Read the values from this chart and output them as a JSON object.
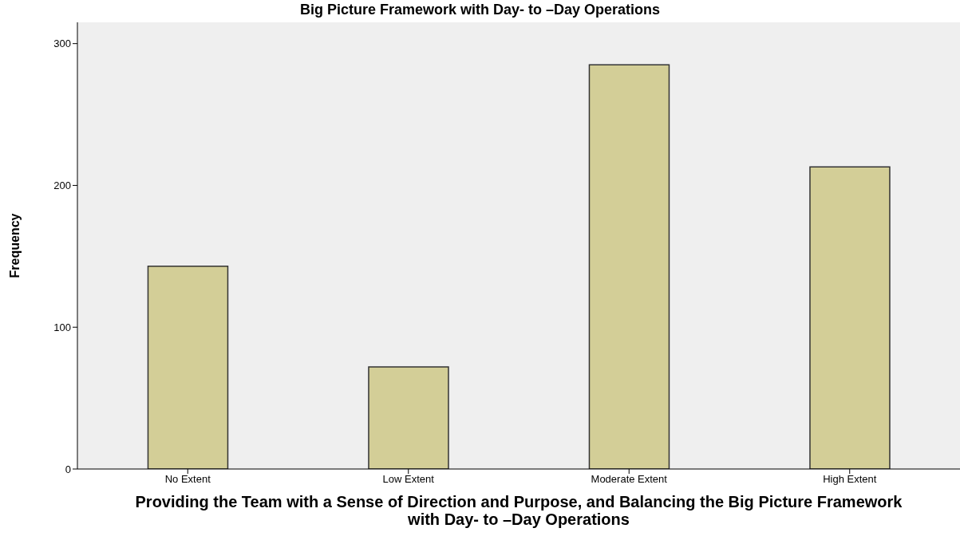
{
  "chart_data": {
    "type": "bar",
    "title": "Big Picture Framework with Day- to –Day Operations",
    "xlabel": "Providing the Team with a Sense of Direction and Purpose, and Balancing the Big Picture Framework with Day- to –Day Operations",
    "ylabel": "Frequency",
    "categories": [
      "No Extent",
      "Low Extent",
      "Moderate Extent",
      "High Extent"
    ],
    "values": [
      143,
      72,
      285,
      213
    ],
    "color": "#d3ce97",
    "ylim": [
      0,
      315
    ],
    "yticks": [
      0,
      100,
      200,
      300
    ]
  }
}
